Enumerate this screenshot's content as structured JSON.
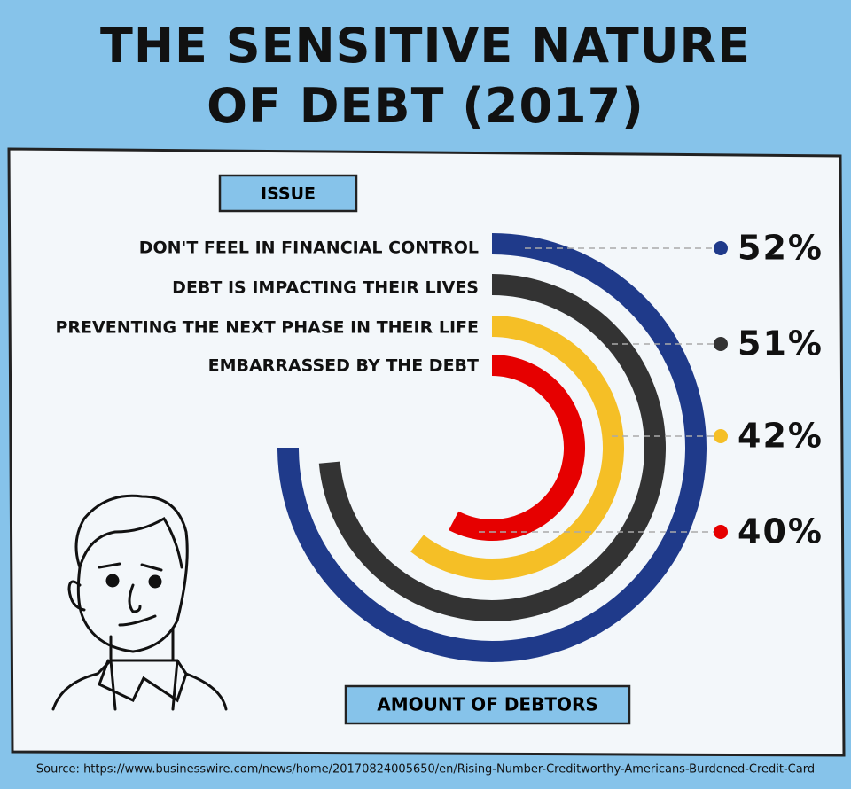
{
  "chart_data": {
    "type": "radial_bar",
    "title": "THE SENSITIVE NATURE OF DEBT (2017)",
    "category_header": "ISSUE",
    "value_header": "AMOUNT OF DEBTORS",
    "categories": [
      "DON'T FEEL IN FINANCIAL CONTROL",
      "DEBT IS IMPACTING THEIR LIVES",
      "PREVENTING THE NEXT PHASE IN THEIR LIFE",
      "EMBARRASSED BY THE DEBT"
    ],
    "values": [
      52,
      51,
      42,
      40
    ],
    "value_labels": [
      "52%",
      "51%",
      "42%",
      "40%"
    ],
    "colors": [
      "#1f3a8a",
      "#333333",
      "#f5bf26",
      "#e60000"
    ],
    "source": "Source: https://www.businesswire.com/news/home/20170824005650/en/Rising-Number-Creditworthy-Americans-Burdened-Credit-Card"
  }
}
